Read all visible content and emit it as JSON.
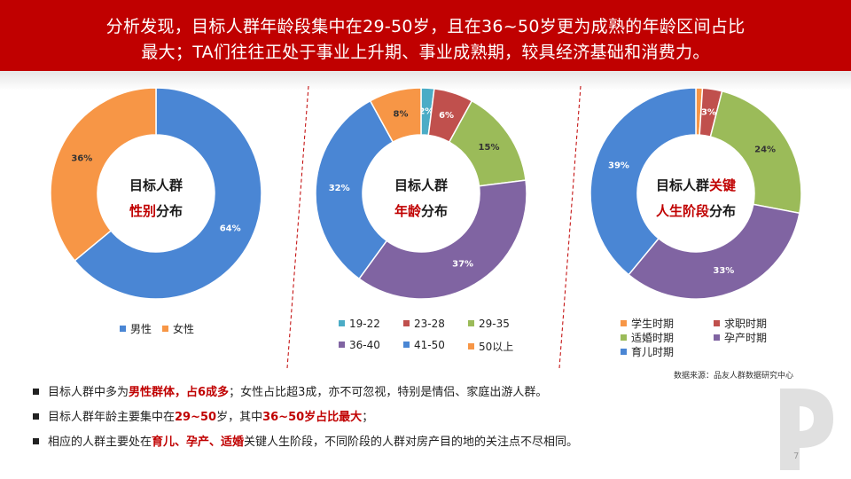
{
  "header": {
    "line1": "分析发现，目标人群年龄段集中在29-50岁，且在36~50岁更为成熟的年龄区间占比",
    "line2": "最大；TA们往往正处于事业上升期、事业成熟期，较具经济基础和消费力。"
  },
  "charts": [
    {
      "center_line1": "目标人群",
      "center_red2": "性别",
      "center_black2": "分布"
    },
    {
      "center_line1": "目标人群",
      "center_red2": "年龄",
      "center_black2": "分布"
    },
    {
      "center_line1a": "目标人群",
      "center_red1": "关键",
      "center_red2": "人生阶段",
      "center_black2": "分布"
    }
  ],
  "chart_data": [
    {
      "type": "pie",
      "donut": true,
      "categories": [
        "男性",
        "女性"
      ],
      "values": [
        64,
        36
      ],
      "labels": [
        "64%",
        "36%"
      ],
      "colors": [
        "#4a86d4",
        "#f79646"
      ],
      "legend_position": "bottom"
    },
    {
      "type": "pie",
      "donut": true,
      "categories": [
        "19-22",
        "23-28",
        "29-35",
        "36-40",
        "41-50",
        "50以上"
      ],
      "values": [
        2,
        6,
        15,
        37,
        32,
        8
      ],
      "labels": [
        "2%",
        "6%",
        "15%",
        "37%",
        "32%",
        "8%"
      ],
      "colors": [
        "#4bacc6",
        "#c0504d",
        "#9bbb59",
        "#8064a2",
        "#4a86d4",
        "#f79646"
      ],
      "legend_position": "bottom"
    },
    {
      "type": "pie",
      "donut": true,
      "categories": [
        "学生时期",
        "求职时期",
        "适婚时期",
        "孕产时期",
        "育儿时期"
      ],
      "values": [
        1,
        3,
        24,
        33,
        39
      ],
      "labels": [
        "",
        "3%",
        "24%",
        "33%",
        "39%"
      ],
      "colors": [
        "#f79646",
        "#c0504d",
        "#9bbb59",
        "#8064a2",
        "#4a86d4"
      ],
      "legend_position": "bottom"
    }
  ],
  "source": "数据来源：品友人群数据研究中心",
  "bullets": [
    {
      "parts": [
        [
          "目标人群中多为",
          false
        ],
        [
          "男性群体，占6成多",
          true
        ],
        [
          "；女性占比超3成，亦不可忽视，特别是情侣、家庭出游人群。",
          false
        ]
      ]
    },
    {
      "parts": [
        [
          "目标人群年龄主要集中在",
          false
        ],
        [
          "29~50",
          true
        ],
        [
          "岁，其中",
          false
        ],
        [
          "36~50岁占比最大",
          true
        ],
        [
          "；",
          false
        ]
      ]
    },
    {
      "parts": [
        [
          "相应的人群主要处在",
          false
        ],
        [
          "育儿、孕产、适婚",
          true
        ],
        [
          "关键人生阶段，不同阶段的人群对房产目的地的关注点不尽相同。",
          false
        ]
      ]
    }
  ],
  "page_number": "7"
}
